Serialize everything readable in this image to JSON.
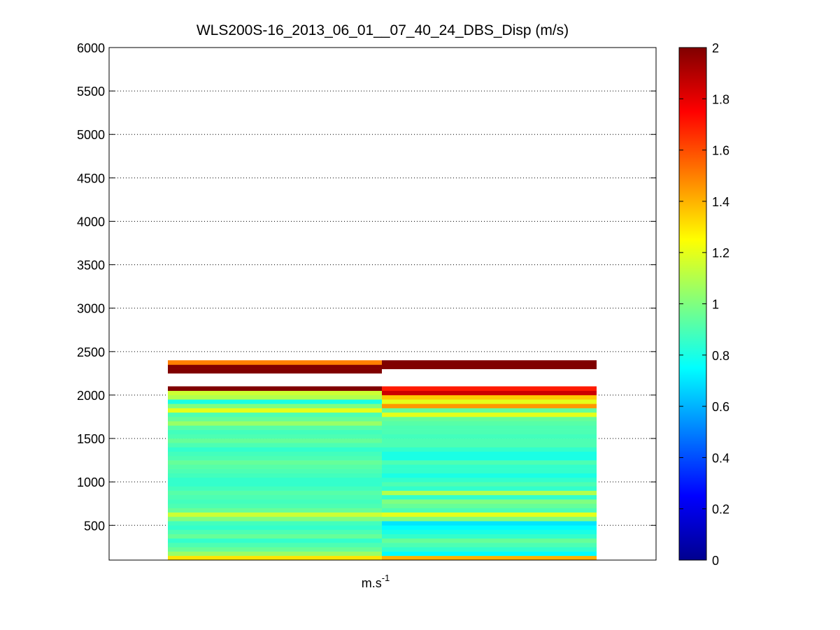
{
  "chart_data": {
    "type": "heatmap",
    "title": "WLS200S-16_2013_06_01__07_40_24_DBS_Disp (m/s)",
    "xlabel_base": "m.s",
    "xlabel_exp": "-1",
    "ylabel": "",
    "ylim": [
      100,
      6000
    ],
    "yticks": [
      500,
      1000,
      1500,
      2000,
      2500,
      3000,
      3500,
      4000,
      4500,
      5000,
      5500,
      6000
    ],
    "grid": true,
    "colorbar": {
      "colormap": "jet",
      "range": [
        0,
        2
      ],
      "ticks": [
        0,
        0.2,
        0.4,
        0.6,
        0.8,
        1,
        1.2,
        1.4,
        1.6,
        1.8,
        2
      ]
    },
    "y_bin_edges": [
      100,
      150,
      200,
      250,
      300,
      350,
      400,
      450,
      500,
      550,
      600,
      650,
      700,
      750,
      800,
      850,
      900,
      950,
      1000,
      1050,
      1100,
      1150,
      1200,
      1250,
      1300,
      1350,
      1400,
      1450,
      1500,
      1550,
      1600,
      1650,
      1700,
      1750,
      1800,
      1850,
      1900,
      1950,
      2000,
      2050,
      2100,
      2150,
      2200,
      2250,
      2300,
      2350,
      2400
    ],
    "columns": [
      {
        "values": [
          1.3,
          1.05,
          0.95,
          0.9,
          0.85,
          0.95,
          0.9,
          0.85,
          0.88,
          1.0,
          1.15,
          0.95,
          0.9,
          0.88,
          0.9,
          0.92,
          0.88,
          0.85,
          0.85,
          0.88,
          0.9,
          0.92,
          0.95,
          0.9,
          0.88,
          0.85,
          0.9,
          0.95,
          0.9,
          0.88,
          0.92,
          1.05,
          0.95,
          0.9,
          1.2,
          1.0,
          0.8,
          1.1,
          1.15,
          2.0,
          null,
          null,
          null,
          2.0,
          2.0,
          1.5
        ]
      },
      {
        "values": [
          1.4,
          0.75,
          0.85,
          0.9,
          0.95,
          0.85,
          0.8,
          0.75,
          0.7,
          1.0,
          1.2,
          0.9,
          0.95,
          1.0,
          0.85,
          1.1,
          0.85,
          0.9,
          0.85,
          0.8,
          0.85,
          0.85,
          0.9,
          0.8,
          0.8,
          0.85,
          0.9,
          0.9,
          0.88,
          0.9,
          0.9,
          0.92,
          0.95,
          1.2,
          0.95,
          1.45,
          1.2,
          1.35,
          1.85,
          1.7,
          null,
          null,
          null,
          null,
          2.0,
          2.0
        ]
      }
    ]
  }
}
